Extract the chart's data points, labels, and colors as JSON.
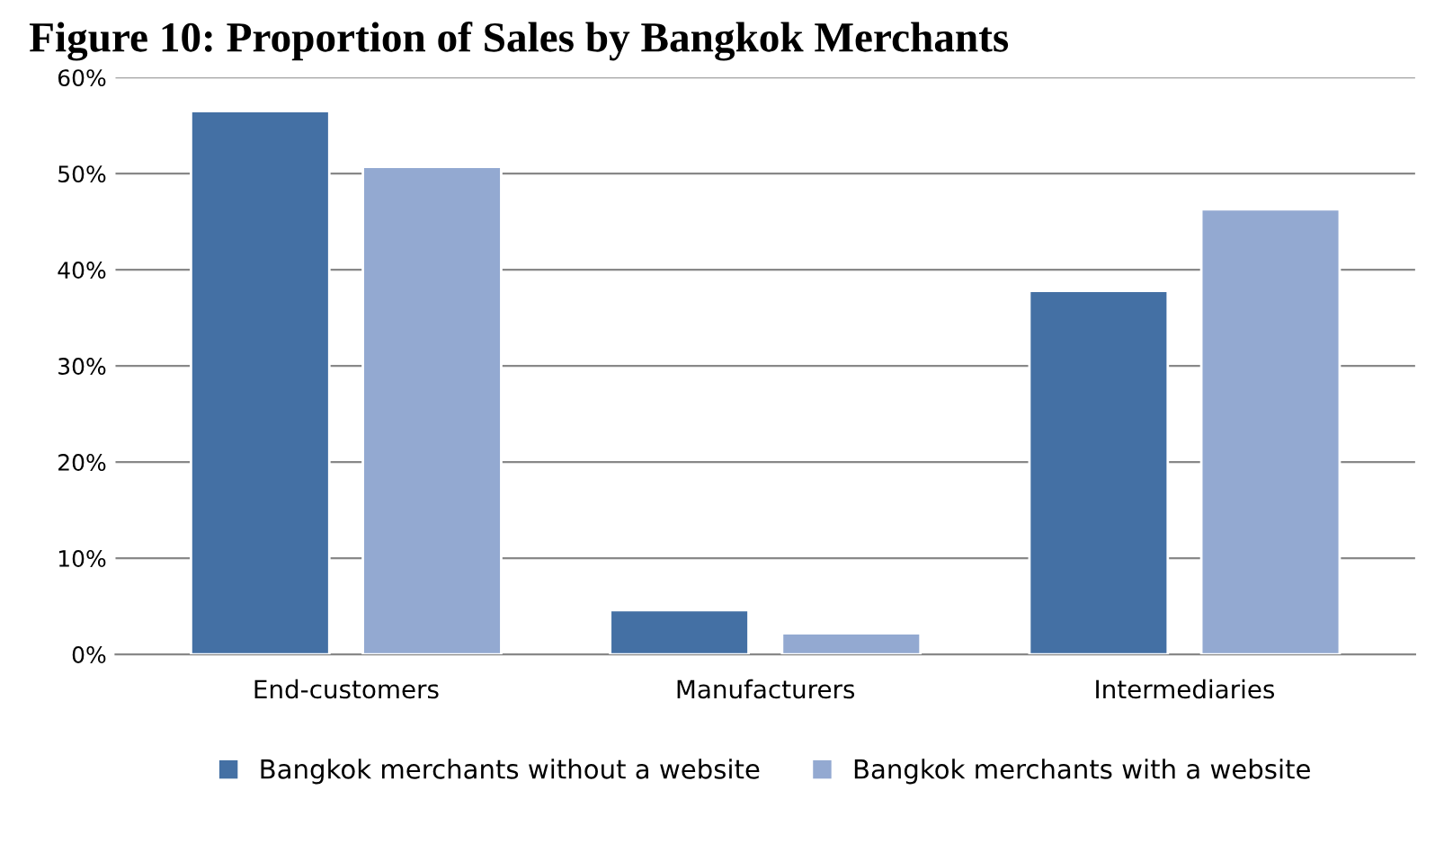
{
  "chart_data": {
    "type": "bar",
    "title": "Figure 10: Proportion of Sales by Bangkok Merchants",
    "categories": [
      "End-customers",
      "Manufacturers",
      "Intermediaries"
    ],
    "series": [
      {
        "name": "Bangkok merchants without a website",
        "color": "#4470a4",
        "values": [
          56.5,
          4.6,
          37.8
        ]
      },
      {
        "name": "Bangkok merchants with a website",
        "color": "#93a9d1",
        "values": [
          50.7,
          2.2,
          46.3
        ]
      }
    ],
    "ylim": [
      0,
      60
    ],
    "yticks": [
      {
        "value": 0,
        "label": "0%"
      },
      {
        "value": 10,
        "label": "10%"
      },
      {
        "value": 20,
        "label": "20%"
      },
      {
        "value": 30,
        "label": "30%"
      },
      {
        "value": 40,
        "label": "40%"
      },
      {
        "value": 50,
        "label": "50%"
      },
      {
        "value": 60,
        "label": "60%"
      }
    ],
    "grid": "y",
    "legend": "bottom"
  }
}
